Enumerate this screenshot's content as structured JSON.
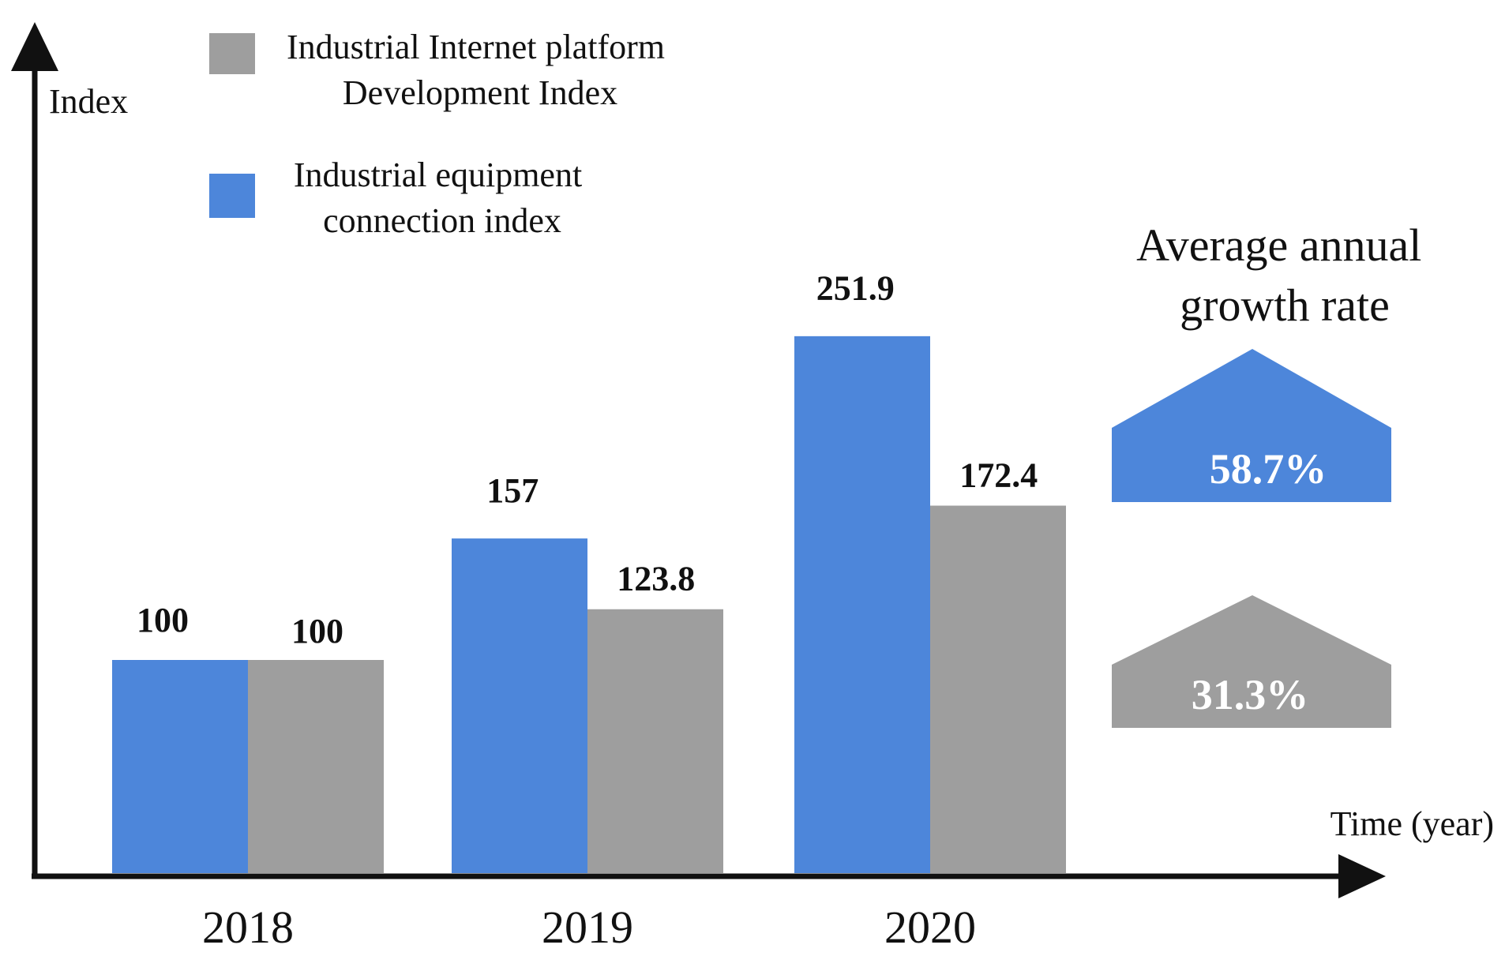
{
  "chart_data": {
    "type": "bar",
    "ylabel": "Index",
    "xlabel": "Time (year)",
    "categories": [
      "2018",
      "2019",
      "2020"
    ],
    "series": [
      {
        "name": "Industrial equipment connection index",
        "legend_lines": [
          "Industrial equipment",
          "connection index"
        ],
        "color": "#4d86da",
        "values": [
          100,
          157,
          251.9
        ],
        "labels": [
          "100",
          "157",
          "251.9"
        ]
      },
      {
        "name": "Industrial Internet platform Development Index",
        "legend_lines": [
          "Industrial Internet platform",
          "Development Index"
        ],
        "color": "#9e9e9e",
        "values": [
          100,
          123.8,
          172.4
        ],
        "labels": [
          "100",
          "123.8",
          "172.4"
        ]
      }
    ],
    "ylim": [
      0,
      300
    ],
    "grid": false,
    "legend_position": "top-left",
    "growth_rate": {
      "title_lines": [
        "Average annual",
        "growth rate"
      ],
      "items": [
        {
          "value": "58.7%",
          "color": "#4d86da"
        },
        {
          "value": "31.3%",
          "color": "#9e9e9e"
        }
      ]
    }
  }
}
